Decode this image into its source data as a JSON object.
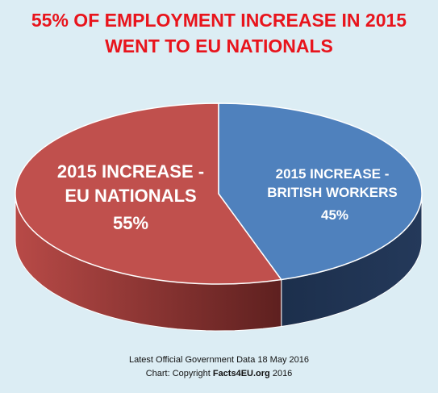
{
  "chart_data": {
    "type": "pie",
    "title": [
      "55% OF EMPLOYMENT INCREASE IN 2015",
      "WENT TO EU NATIONALS"
    ],
    "categories": [
      "2015 INCREASE - EU NATIONALS",
      "2015 INCREASE - BRITISH WORKERS"
    ],
    "values": [
      55,
      45
    ],
    "value_labels": [
      "55%",
      "45%"
    ],
    "colors": [
      "#c0504d",
      "#4f81bd"
    ],
    "footer": {
      "line1": "Latest Official Government Data 18 May 2016",
      "prefix": "Chart: Copyright",
      "site": "Facts4EU.org",
      "year": "2016"
    }
  }
}
